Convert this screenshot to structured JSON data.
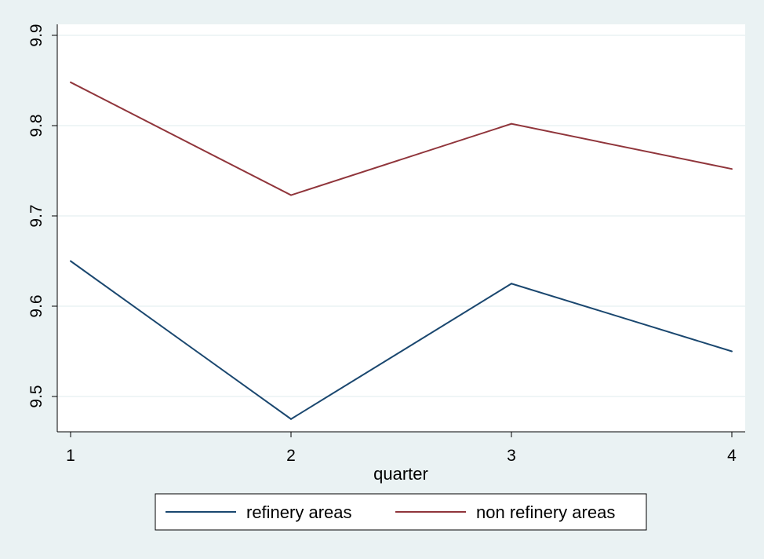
{
  "chart_data": {
    "type": "line",
    "title": "",
    "xlabel": "quarter",
    "ylabel": "",
    "x": [
      1,
      2,
      3,
      4
    ],
    "x_ticks": [
      "1",
      "2",
      "3",
      "4"
    ],
    "y_ticks": [
      "9.5",
      "9.6",
      "9.7",
      "9.8",
      "9.9"
    ],
    "ylim": [
      9.462,
      9.9
    ],
    "xlim": [
      0.94,
      4.0
    ],
    "grid": true,
    "legend_position": "bottom",
    "series": [
      {
        "name": "refinery areas",
        "color": "#1a476f",
        "values": [
          9.65,
          9.475,
          9.625,
          9.55
        ]
      },
      {
        "name": "non refinery areas",
        "color": "#90353b",
        "values": [
          9.848,
          9.723,
          9.802,
          9.752
        ]
      }
    ]
  }
}
